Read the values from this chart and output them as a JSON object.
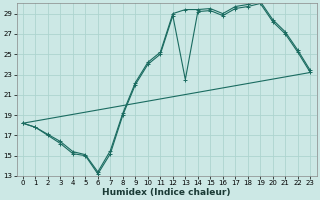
{
  "xlabel": "Humidex (Indice chaleur)",
  "bg_color": "#cce8e5",
  "grid_color": "#add4cf",
  "line_color": "#1a6b60",
  "xlim": [
    -0.5,
    23.5
  ],
  "ylim": [
    13,
    30
  ],
  "xticks": [
    0,
    1,
    2,
    3,
    4,
    5,
    6,
    7,
    8,
    9,
    10,
    11,
    12,
    13,
    14,
    15,
    16,
    17,
    18,
    19,
    20,
    21,
    22,
    23
  ],
  "yticks": [
    13,
    15,
    17,
    19,
    21,
    23,
    25,
    27,
    29
  ],
  "line1_x": [
    0,
    1,
    2,
    3,
    4,
    5,
    6,
    7,
    8,
    9,
    10,
    11,
    12,
    13,
    14,
    15,
    16,
    17,
    18,
    19,
    20,
    21,
    22,
    23
  ],
  "line1_y": [
    18.2,
    17.8,
    17.0,
    16.2,
    15.2,
    15.0,
    13.2,
    15.2,
    19.0,
    22.0,
    24.0,
    25.0,
    28.8,
    22.5,
    29.2,
    29.3,
    28.8,
    29.5,
    29.7,
    30.0,
    28.2,
    27.0,
    25.2,
    23.2
  ],
  "line2_x": [
    0,
    1,
    2,
    3,
    4,
    5,
    6,
    7,
    8,
    9,
    10,
    11,
    12,
    13,
    14,
    15,
    16,
    17,
    18,
    19,
    20,
    21,
    22,
    23
  ],
  "line2_y": [
    18.2,
    17.8,
    17.1,
    16.4,
    15.4,
    15.1,
    13.4,
    15.5,
    19.2,
    22.2,
    24.2,
    25.2,
    29.0,
    29.4,
    29.4,
    29.5,
    29.0,
    29.7,
    29.9,
    30.2,
    28.4,
    27.2,
    25.4,
    23.4
  ],
  "line3_x": [
    0,
    23
  ],
  "line3_y": [
    18.2,
    23.2
  ],
  "xlabel_fontsize": 6.5,
  "tick_fontsize": 5.0
}
